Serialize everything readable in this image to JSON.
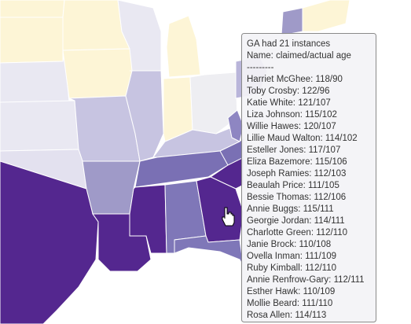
{
  "tooltip": {
    "title": "GA had 21 instances",
    "subtitle": "Name: claimed/actual age",
    "separator": "---------",
    "entries": [
      "Harriet McGhee: 118/90",
      "Toby Crosby: 122/96",
      "Katie White: 121/107",
      "Liza Johnson: 115/102",
      "Willie Hawes: 120/107",
      "Lillie Maud Walton: 114/102",
      "Esteller Jones: 117/107",
      "Eliza Bazemore: 115/106",
      "Joseph Ramies: 112/103",
      "Beaulah Price: 111/105",
      "Bessie Thomas: 112/106",
      "Annie Buggs: 115/111",
      "Georgie Jordan: 114/111",
      "Charlotte Green: 112/110",
      "Janie Brock: 110/108",
      "Ovella Inman: 111/109",
      "Ruby Kimball: 112/110",
      "Annie Renfrow-Gary: 112/111",
      "Esther Hawk: 110/109",
      "Mollie Beard: 111/110",
      "Rosa Allen: 114/113"
    ]
  }
}
